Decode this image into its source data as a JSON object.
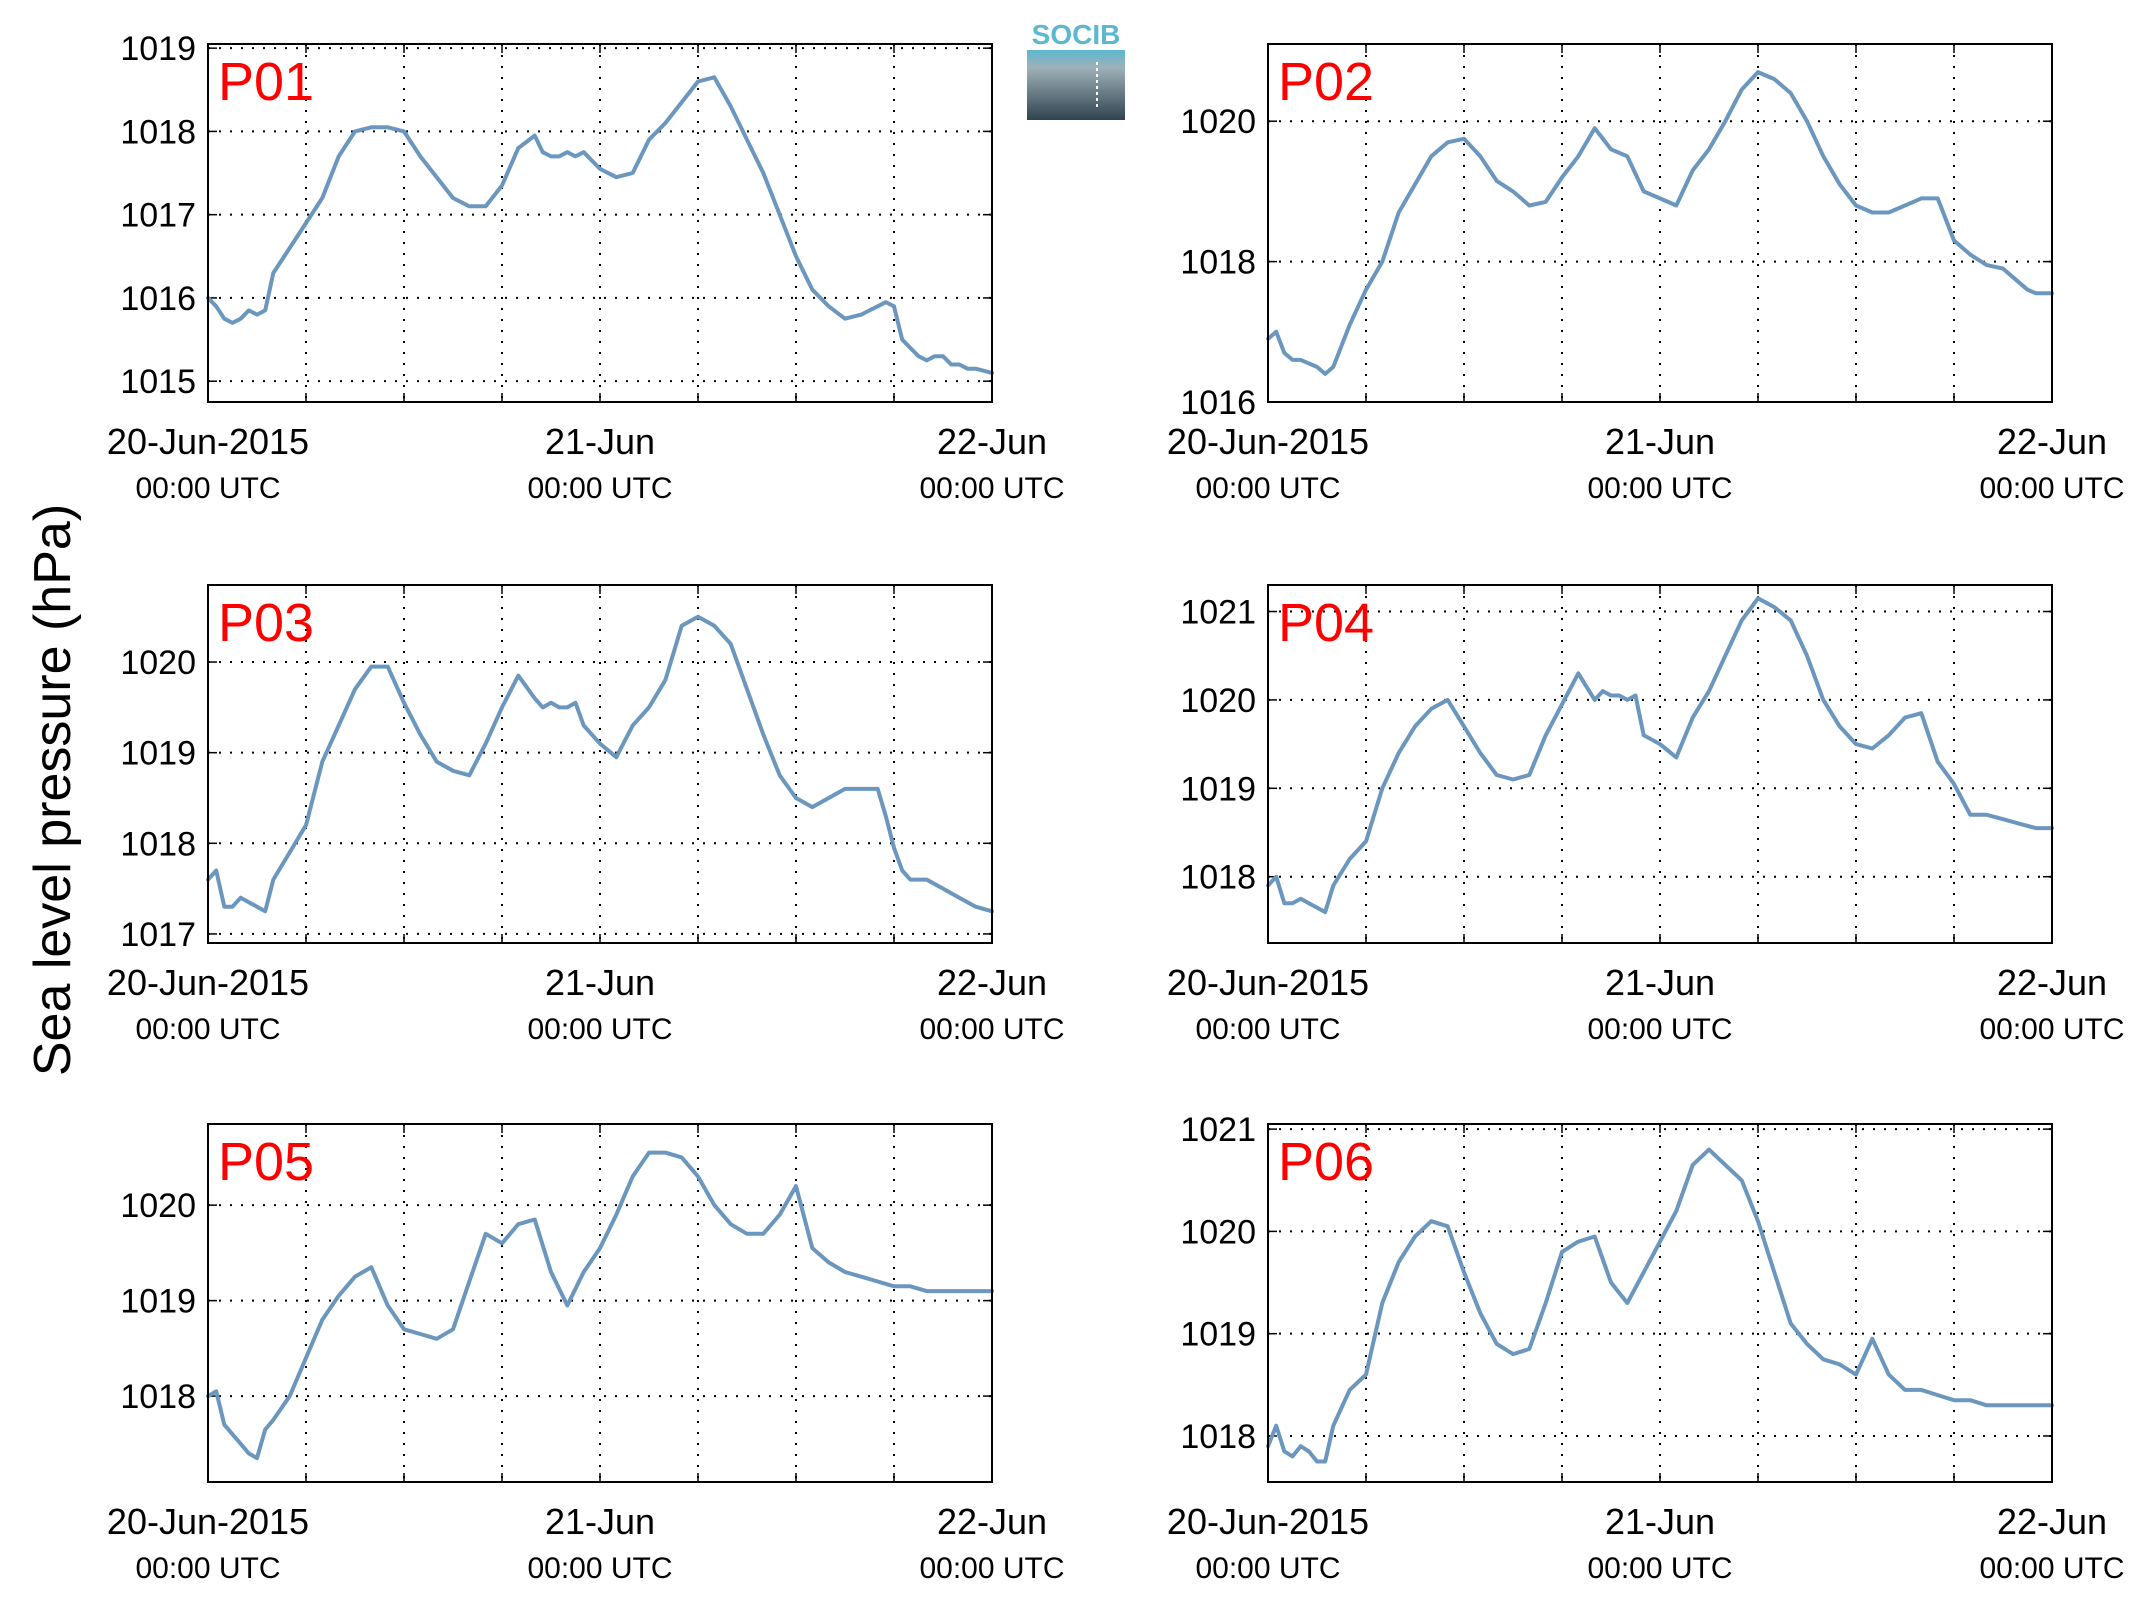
{
  "ylabel": "Sea level pressure (hPa)",
  "logo": {
    "text": "SOCIB"
  },
  "colors": {
    "line": "#6b96bd",
    "label": "#ff0000",
    "grid": "#000000",
    "logo_top": "#5bb8d0",
    "logo_bottom": "#2f4450"
  },
  "x_ticks": [
    {
      "date": "20-Jun-2015",
      "time": "00:00 UTC"
    },
    {
      "date": "21-Jun",
      "time": "00:00 UTC"
    },
    {
      "date": "22-Jun",
      "time": "00:00 UTC"
    }
  ],
  "chart_data": [
    {
      "type": "line",
      "label": "P01",
      "xlim": [
        0,
        48
      ],
      "ylim": [
        1014.75,
        1019.05
      ],
      "yticks": [
        1015,
        1016,
        1017,
        1018,
        1019
      ],
      "x": [
        0,
        0.5,
        1,
        1.5,
        2,
        2.5,
        3,
        3.5,
        4,
        5,
        6,
        7,
        8,
        9,
        10,
        11,
        12,
        13,
        14,
        15,
        16,
        17,
        18,
        19,
        20,
        20.5,
        21,
        21.5,
        22,
        22.5,
        23,
        24,
        25,
        26,
        27,
        28,
        29,
        30,
        31,
        32,
        33,
        34,
        35,
        36,
        37,
        38,
        39,
        40,
        40.5,
        41,
        41.5,
        42,
        42.5,
        43,
        43.5,
        44,
        44.5,
        45,
        45.5,
        46,
        46.5,
        47,
        48
      ],
      "y": [
        1016.0,
        1015.9,
        1015.75,
        1015.7,
        1015.75,
        1015.85,
        1015.8,
        1015.85,
        1016.3,
        1016.6,
        1016.9,
        1017.2,
        1017.7,
        1018.0,
        1018.05,
        1018.05,
        1018.0,
        1017.7,
        1017.45,
        1017.2,
        1017.1,
        1017.1,
        1017.35,
        1017.8,
        1017.95,
        1017.75,
        1017.7,
        1017.7,
        1017.75,
        1017.7,
        1017.75,
        1017.55,
        1017.45,
        1017.5,
        1017.9,
        1018.1,
        1018.35,
        1018.6,
        1018.65,
        1018.3,
        1017.9,
        1017.5,
        1017.0,
        1016.5,
        1016.1,
        1015.9,
        1015.75,
        1015.8,
        1015.85,
        1015.9,
        1015.95,
        1015.9,
        1015.5,
        1015.4,
        1015.3,
        1015.25,
        1015.3,
        1015.3,
        1015.2,
        1015.2,
        1015.15,
        1015.15,
        1015.1
      ]
    },
    {
      "type": "line",
      "label": "P02",
      "xlim": [
        0,
        48
      ],
      "ylim": [
        1016,
        1021.1
      ],
      "yticks": [
        1016,
        1018,
        1020
      ],
      "x": [
        0,
        0.5,
        1,
        1.5,
        2,
        2.5,
        3,
        3.5,
        4,
        5,
        6,
        7,
        8,
        9,
        10,
        11,
        12,
        13,
        14,
        15,
        16,
        17,
        18,
        19,
        20,
        21,
        22,
        23,
        24,
        25,
        26,
        27,
        28,
        29,
        30,
        31,
        32,
        33,
        34,
        35,
        36,
        37,
        38,
        39,
        40,
        41,
        42,
        43,
        44,
        45,
        46,
        46.5,
        47,
        48
      ],
      "y": [
        1016.9,
        1017.0,
        1016.7,
        1016.6,
        1016.6,
        1016.55,
        1016.5,
        1016.4,
        1016.5,
        1017.1,
        1017.6,
        1018.0,
        1018.7,
        1019.1,
        1019.5,
        1019.7,
        1019.75,
        1019.5,
        1019.15,
        1019.0,
        1018.8,
        1018.85,
        1019.2,
        1019.5,
        1019.9,
        1019.6,
        1019.5,
        1019.0,
        1018.9,
        1018.8,
        1019.3,
        1019.6,
        1020.0,
        1020.45,
        1020.7,
        1020.6,
        1020.4,
        1020.0,
        1019.5,
        1019.1,
        1018.8,
        1018.7,
        1018.7,
        1018.8,
        1018.9,
        1018.9,
        1018.3,
        1018.1,
        1017.95,
        1017.9,
        1017.7,
        1017.6,
        1017.55,
        1017.55
      ]
    },
    {
      "type": "line",
      "label": "P03",
      "xlim": [
        0,
        48
      ],
      "ylim": [
        1016.9,
        1020.85
      ],
      "yticks": [
        1017,
        1018,
        1019,
        1020
      ],
      "x": [
        0,
        0.5,
        1,
        1.5,
        2,
        2.5,
        3,
        3.5,
        4,
        5,
        6,
        7,
        8,
        9,
        10,
        11,
        12,
        13,
        14,
        15,
        16,
        17,
        18,
        19,
        20,
        20.5,
        21,
        21.5,
        22,
        22.5,
        23,
        24,
        25,
        26,
        27,
        28,
        29,
        30,
        31,
        32,
        33,
        34,
        35,
        36,
        37,
        38,
        39,
        40,
        41,
        41.5,
        42,
        42.5,
        43,
        43.5,
        44,
        44.5,
        45,
        45.5,
        46,
        46.5,
        47,
        48
      ],
      "y": [
        1017.6,
        1017.7,
        1017.3,
        1017.3,
        1017.4,
        1017.35,
        1017.3,
        1017.25,
        1017.6,
        1017.9,
        1018.2,
        1018.9,
        1019.3,
        1019.7,
        1019.95,
        1019.95,
        1019.55,
        1019.2,
        1018.9,
        1018.8,
        1018.75,
        1019.1,
        1019.5,
        1019.85,
        1019.6,
        1019.5,
        1019.55,
        1019.5,
        1019.5,
        1019.55,
        1019.3,
        1019.1,
        1018.95,
        1019.3,
        1019.5,
        1019.8,
        1020.4,
        1020.5,
        1020.4,
        1020.2,
        1019.7,
        1019.2,
        1018.75,
        1018.5,
        1018.4,
        1018.5,
        1018.6,
        1018.6,
        1018.6,
        1018.3,
        1017.95,
        1017.7,
        1017.6,
        1017.6,
        1017.6,
        1017.55,
        1017.5,
        1017.45,
        1017.4,
        1017.35,
        1017.3,
        1017.25
      ]
    },
    {
      "type": "line",
      "label": "P04",
      "xlim": [
        0,
        48
      ],
      "ylim": [
        1017.25,
        1021.3
      ],
      "yticks": [
        1018,
        1019,
        1020,
        1021
      ],
      "x": [
        0,
        0.5,
        1,
        1.5,
        2,
        2.5,
        3,
        3.5,
        4,
        5,
        6,
        7,
        8,
        9,
        10,
        11,
        12,
        13,
        14,
        15,
        16,
        17,
        18,
        19,
        20,
        20.5,
        21,
        21.5,
        22,
        22.5,
        23,
        24,
        25,
        26,
        27,
        28,
        29,
        30,
        31,
        32,
        33,
        34,
        35,
        36,
        37,
        38,
        39,
        40,
        41,
        42,
        43,
        44,
        45,
        46,
        47,
        48
      ],
      "y": [
        1017.9,
        1018.0,
        1017.7,
        1017.7,
        1017.75,
        1017.7,
        1017.65,
        1017.6,
        1017.9,
        1018.2,
        1018.4,
        1019.0,
        1019.4,
        1019.7,
        1019.9,
        1020.0,
        1019.7,
        1019.4,
        1019.15,
        1019.1,
        1019.15,
        1019.6,
        1019.95,
        1020.3,
        1020.0,
        1020.1,
        1020.05,
        1020.05,
        1020.0,
        1020.05,
        1019.6,
        1019.5,
        1019.35,
        1019.8,
        1020.1,
        1020.5,
        1020.9,
        1021.15,
        1021.05,
        1020.9,
        1020.5,
        1020.0,
        1019.7,
        1019.5,
        1019.45,
        1019.6,
        1019.8,
        1019.85,
        1019.3,
        1019.05,
        1018.7,
        1018.7,
        1018.65,
        1018.6,
        1018.55,
        1018.55
      ]
    },
    {
      "type": "line",
      "label": "P05",
      "xlim": [
        0,
        48
      ],
      "ylim": [
        1017.1,
        1020.85
      ],
      "yticks": [
        1018,
        1019,
        1020
      ],
      "x": [
        0,
        0.5,
        1,
        1.5,
        2,
        2.5,
        3,
        3.5,
        4,
        5,
        6,
        7,
        8,
        9,
        10,
        11,
        12,
        13,
        14,
        15,
        16,
        17,
        18,
        19,
        20,
        21,
        22,
        23,
        24,
        25,
        26,
        27,
        28,
        29,
        30,
        31,
        32,
        33,
        34,
        35,
        36,
        37,
        38,
        39,
        40,
        41,
        42,
        43,
        44,
        45,
        46,
        47,
        48
      ],
      "y": [
        1018.0,
        1018.05,
        1017.7,
        1017.6,
        1017.5,
        1017.4,
        1017.35,
        1017.65,
        1017.75,
        1018.0,
        1018.4,
        1018.8,
        1019.05,
        1019.25,
        1019.35,
        1018.95,
        1018.7,
        1018.65,
        1018.6,
        1018.7,
        1019.2,
        1019.7,
        1019.6,
        1019.8,
        1019.85,
        1019.3,
        1018.95,
        1019.3,
        1019.55,
        1019.9,
        1020.3,
        1020.55,
        1020.55,
        1020.5,
        1020.3,
        1020.0,
        1019.8,
        1019.7,
        1019.7,
        1019.9,
        1020.2,
        1019.55,
        1019.4,
        1019.3,
        1019.25,
        1019.2,
        1019.15,
        1019.15,
        1019.1,
        1019.1,
        1019.1,
        1019.1,
        1019.1
      ]
    },
    {
      "type": "line",
      "label": "P06",
      "xlim": [
        0,
        48
      ],
      "ylim": [
        1017.55,
        1021.05
      ],
      "yticks": [
        1018,
        1019,
        1020,
        1021
      ],
      "x": [
        0,
        0.5,
        1,
        1.5,
        2,
        2.5,
        3,
        3.5,
        4,
        5,
        6,
        7,
        8,
        9,
        10,
        11,
        12,
        13,
        14,
        15,
        16,
        17,
        18,
        19,
        20,
        21,
        22,
        23,
        24,
        25,
        26,
        27,
        28,
        29,
        30,
        31,
        32,
        33,
        34,
        35,
        36,
        37,
        38,
        39,
        40,
        41,
        42,
        43,
        44,
        45,
        46,
        47,
        48
      ],
      "y": [
        1017.9,
        1018.1,
        1017.85,
        1017.8,
        1017.9,
        1017.85,
        1017.75,
        1017.75,
        1018.1,
        1018.45,
        1018.6,
        1019.3,
        1019.7,
        1019.95,
        1020.1,
        1020.05,
        1019.6,
        1019.2,
        1018.9,
        1018.8,
        1018.85,
        1019.3,
        1019.8,
        1019.9,
        1019.95,
        1019.5,
        1019.3,
        1019.6,
        1019.9,
        1020.2,
        1020.65,
        1020.8,
        1020.65,
        1020.5,
        1020.1,
        1019.6,
        1019.1,
        1018.9,
        1018.75,
        1018.7,
        1018.6,
        1018.95,
        1018.6,
        1018.45,
        1018.45,
        1018.4,
        1018.35,
        1018.35,
        1018.3,
        1018.3,
        1018.3,
        1018.3,
        1018.3
      ]
    }
  ]
}
